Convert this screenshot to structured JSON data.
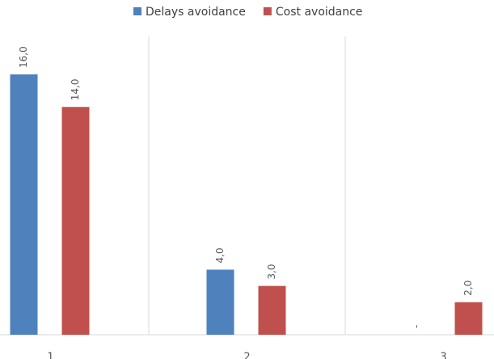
{
  "chart_data": {
    "type": "bar",
    "categories": [
      "1",
      "2",
      "3"
    ],
    "series": [
      {
        "name": "Delays avoidance",
        "color": "#4f81bd",
        "values": [
          16,
          4,
          0
        ],
        "value_labels": [
          "16,0",
          "4,0",
          "-"
        ]
      },
      {
        "name": "Cost avoidance",
        "color": "#c0504d",
        "values": [
          14,
          3,
          2
        ],
        "value_labels": [
          "14,0",
          "3,0",
          "2,0"
        ]
      }
    ],
    "ylim": [
      0,
      16
    ],
    "legend": "top"
  }
}
